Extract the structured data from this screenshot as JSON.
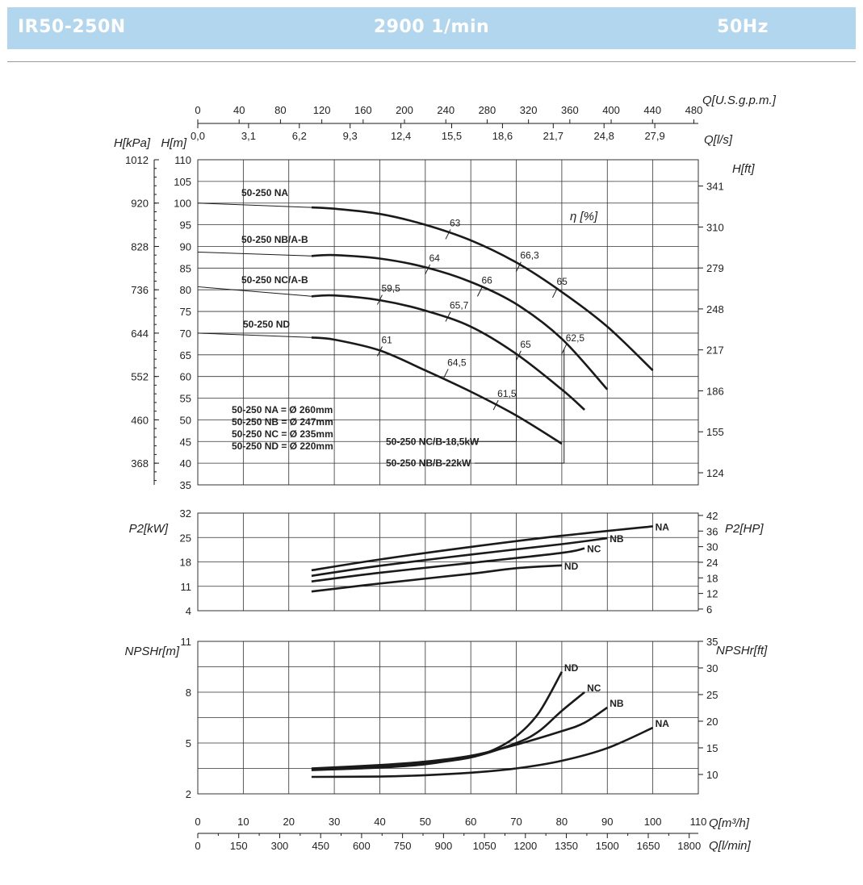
{
  "header": {
    "model": "IR50-250N",
    "speed": "2900 1/min",
    "frequency": "50Hz"
  },
  "chart_data": [
    {
      "type": "line",
      "name": "head",
      "ylabel": "H[m]",
      "ylabel_kpa": "H[kPa]",
      "ylabel_ft": "H[ft]",
      "eff_label": "η [%]",
      "xlim": [
        0,
        110
      ],
      "ylim": [
        35,
        110
      ],
      "x_ticks_qm3h": [
        "0",
        "10",
        "20",
        "30",
        "40",
        "50",
        "60",
        "70",
        "80",
        "90",
        "100",
        "110"
      ],
      "x_label_qm3h": "Q[m³/h]",
      "x_ticks_lmin": [
        "0",
        "150",
        "300",
        "450",
        "600",
        "750",
        "900",
        "1050",
        "1200",
        "1350",
        "1500",
        "1650",
        "1800"
      ],
      "x_label_lmin": "Q[l/min]",
      "x_ticks_gpm": [
        "0",
        "40",
        "80",
        "120",
        "160",
        "200",
        "240",
        "280",
        "320",
        "360",
        "400",
        "440",
        "480"
      ],
      "x_label_gpm": "Q[U.S.g.p.m.]",
      "x_ticks_ls": [
        "0,0",
        "3,1",
        "6,2",
        "9,3",
        "12,4",
        "15,5",
        "18,6",
        "21,7",
        "24,8",
        "27,9"
      ],
      "x_label_ls": "Q[l/s]",
      "y_ticks_m": [
        "35",
        "40",
        "45",
        "50",
        "55",
        "60",
        "65",
        "70",
        "75",
        "80",
        "85",
        "90",
        "95",
        "100",
        "105",
        "110"
      ],
      "y_ticks_kpa": [
        "368",
        "460",
        "552",
        "644",
        "736",
        "828",
        "920",
        "1012"
      ],
      "y_ticks_ft": [
        "124",
        "155",
        "186",
        "217",
        "248",
        "279",
        "310",
        "341"
      ],
      "series": [
        {
          "name": "50-250 NA",
          "x": [
            0,
            25,
            30,
            40,
            50,
            60,
            70,
            80,
            90,
            100
          ],
          "y": [
            100,
            99,
            98.7,
            97.5,
            95,
            91.4,
            86.3,
            79.5,
            71.5,
            61.4
          ]
        },
        {
          "name": "50-250 NB/A-B",
          "x": [
            0,
            25,
            30,
            40,
            50,
            60,
            70,
            80,
            90
          ],
          "y": [
            88.7,
            87.8,
            88,
            87.2,
            85.2,
            81.8,
            76.7,
            68.7,
            57
          ]
        },
        {
          "name": "50-250 NC/A-B",
          "x": [
            0,
            25,
            30,
            40,
            50,
            60,
            70,
            80,
            85
          ],
          "y": [
            80.7,
            78.5,
            78.7,
            77.6,
            75.2,
            71.5,
            65.2,
            57,
            52.3
          ]
        },
        {
          "name": "50-250 ND",
          "x": [
            0,
            25,
            30,
            40,
            50,
            60,
            70,
            80
          ],
          "y": [
            70,
            69,
            68.5,
            66,
            61.4,
            56.5,
            51,
            44.5
          ]
        }
      ],
      "efficiency_marks": [
        {
          "label": "63",
          "x": 55,
          "y": 92.8
        },
        {
          "label": "66,3",
          "x": 70.5,
          "y": 85.3
        },
        {
          "label": "65",
          "x": 78.5,
          "y": 79.3
        },
        {
          "label": "64",
          "x": 50.5,
          "y": 84.7
        },
        {
          "label": "66",
          "x": 62,
          "y": 79.6
        },
        {
          "label": "59,5",
          "x": 40,
          "y": 77.7
        },
        {
          "label": "65,7",
          "x": 55,
          "y": 73.8
        },
        {
          "label": "65",
          "x": 70.5,
          "y": 64.8
        },
        {
          "label": "62,5",
          "x": 80.5,
          "y": 66.3
        },
        {
          "label": "61",
          "x": 40,
          "y": 65.8
        },
        {
          "label": "64,5",
          "x": 54.5,
          "y": 60.6
        },
        {
          "label": "61,5",
          "x": 65.5,
          "y": 53.4
        }
      ],
      "power_limits": [
        {
          "label": "50-250 NC/B-18,5kW",
          "x": 70,
          "y": 45
        },
        {
          "label": "50-250 NB/B-22kW",
          "x": 80.5,
          "y": 40
        }
      ],
      "diameters": [
        "50-250 NA = Ø 260mm",
        "50-250 NB = Ø 247mm",
        "50-250 NC = Ø 235mm",
        "50-250 ND = Ø 220mm"
      ]
    },
    {
      "type": "line",
      "name": "power",
      "ylabel": "P2[kW]",
      "ylabel_hp": "P2[HP]",
      "ylim": [
        4,
        32
      ],
      "y_ticks_kw": [
        "4",
        "11",
        "18",
        "25",
        "32"
      ],
      "y_ticks_hp": [
        "6",
        "12",
        "18",
        "24",
        "30",
        "36",
        "42"
      ],
      "series": [
        {
          "name": "NA",
          "x": [
            25,
            40,
            60,
            80,
            100
          ],
          "y": [
            15.6,
            18.7,
            22.3,
            25.5,
            28.2
          ]
        },
        {
          "name": "NB",
          "x": [
            25,
            40,
            60,
            80,
            90
          ],
          "y": [
            14,
            16.9,
            20.1,
            23.1,
            24.8
          ]
        },
        {
          "name": "NC",
          "x": [
            25,
            40,
            60,
            80,
            85
          ],
          "y": [
            12.4,
            14.9,
            17.7,
            20.6,
            21.9
          ]
        },
        {
          "name": "ND",
          "x": [
            25,
            40,
            60,
            70,
            80
          ],
          "y": [
            9.5,
            11.8,
            14.6,
            16.2,
            17
          ]
        }
      ]
    },
    {
      "type": "line",
      "name": "npsh",
      "ylabel": "NPSHr[m]",
      "ylabel_ft": "NPSHr[ft]",
      "ylim": [
        2,
        11
      ],
      "y_ticks_m": [
        "2",
        "5",
        "8",
        "11"
      ],
      "y_ticks_ft": [
        "10",
        "15",
        "20",
        "25",
        "30",
        "35"
      ],
      "series": [
        {
          "name": "NA",
          "x": [
            25,
            40,
            50,
            60,
            70,
            80,
            90,
            100
          ],
          "y": [
            3,
            3.02,
            3.1,
            3.25,
            3.5,
            3.95,
            4.7,
            5.9
          ]
        },
        {
          "name": "NB",
          "x": [
            25,
            40,
            50,
            60,
            70,
            80,
            85,
            90
          ],
          "y": [
            3.5,
            3.7,
            3.9,
            4.25,
            4.9,
            5.7,
            6.2,
            7.1
          ]
        },
        {
          "name": "NC",
          "x": [
            25,
            40,
            50,
            60,
            70,
            75,
            80,
            85
          ],
          "y": [
            3.45,
            3.6,
            3.8,
            4.15,
            5,
            5.7,
            6.9,
            8
          ]
        },
        {
          "name": "ND",
          "x": [
            25,
            40,
            50,
            60,
            65,
            70,
            75,
            80
          ],
          "y": [
            3.4,
            3.55,
            3.75,
            4.2,
            4.6,
            5.4,
            6.8,
            9.2
          ]
        }
      ]
    }
  ]
}
